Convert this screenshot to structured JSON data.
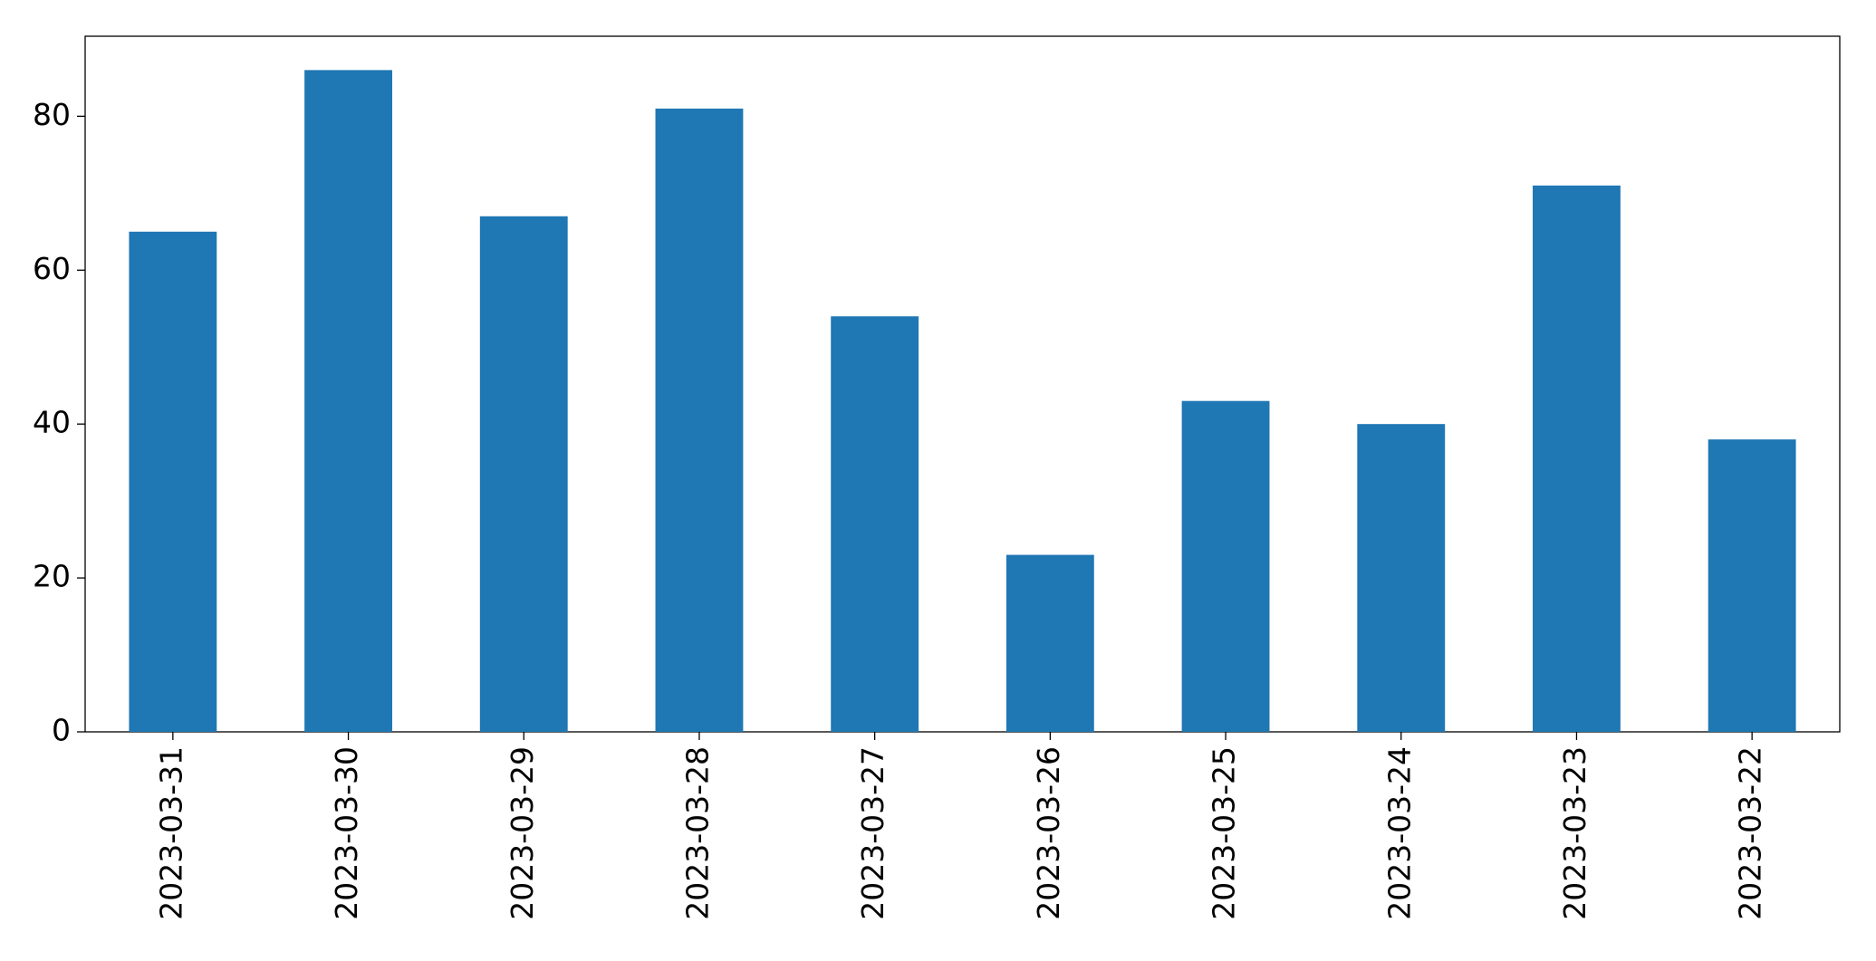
{
  "chart_data": {
    "type": "bar",
    "categories": [
      "2023-03-31",
      "2023-03-30",
      "2023-03-29",
      "2023-03-28",
      "2023-03-27",
      "2023-03-26",
      "2023-03-25",
      "2023-03-24",
      "2023-03-23",
      "2023-03-22"
    ],
    "values": [
      65,
      86,
      67,
      81,
      54,
      23,
      43,
      40,
      71,
      38
    ],
    "color": "#1f77b4",
    "ylim": [
      0,
      90.4
    ],
    "yticks": [
      0,
      20,
      40,
      60,
      80
    ],
    "grid": false
  }
}
